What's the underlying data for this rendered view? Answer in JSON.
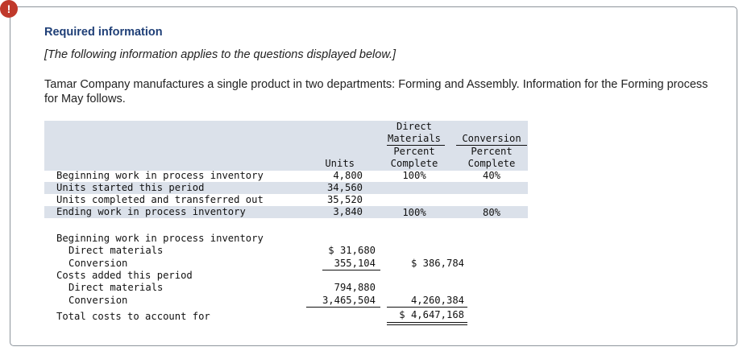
{
  "header": {
    "alert_glyph": "!",
    "required_info": "Required information",
    "applies_note": "[The following information applies to the questions displayed below.]",
    "intro_text": "Tamar Company manufactures a single product in two departments: Forming and Assembly. Information for the Forming process for May follows."
  },
  "units_table": {
    "col_headers": {
      "units": "Units",
      "dm_line1": "Direct",
      "dm_line2": "Materials",
      "dm_line3": "Percent",
      "dm_line4": "Complete",
      "conv_line1": "Conversion",
      "conv_line2": "Percent",
      "conv_line3": "Complete"
    },
    "rows": [
      {
        "label": "Beginning work in process inventory",
        "units": "4,800",
        "dm": "100%",
        "conv": "40%"
      },
      {
        "label": "Units started this period",
        "units": "34,560",
        "dm": "",
        "conv": ""
      },
      {
        "label": "Units completed and transferred out",
        "units": "35,520",
        "dm": "",
        "conv": ""
      },
      {
        "label": "Ending work in process inventory",
        "units": "3,840",
        "dm": "100%",
        "conv": "80%"
      }
    ]
  },
  "cost_table": {
    "beginning_label": "Beginning work in process inventory",
    "beg_dm_label": "Direct materials",
    "beg_dm_value": "$ 31,680",
    "beg_conv_label": "Conversion",
    "beg_conv_value": "355,104",
    "beg_total": "$ 386,784",
    "added_label": "Costs added this period",
    "add_dm_label": "Direct materials",
    "add_dm_value": "794,880",
    "add_conv_label": "Conversion",
    "add_conv_value": "3,465,504",
    "add_total": "4,260,384",
    "total_label": "Total costs to account for",
    "grand_total": "$ 4,647,168"
  }
}
